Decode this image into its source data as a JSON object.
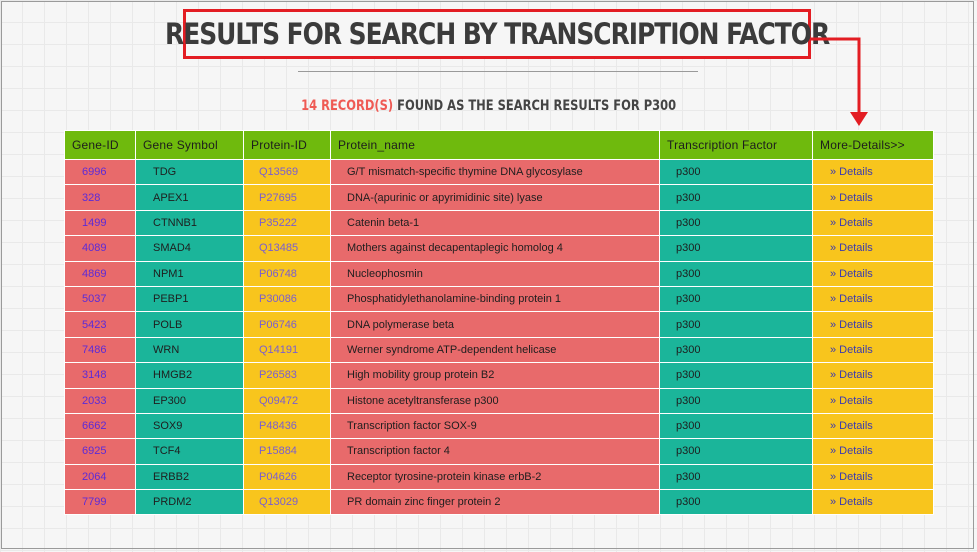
{
  "page": {
    "title": "RESULTS FOR SEARCH BY TRANSCRIPTION FACTOR",
    "subtitle_count": "14 RECORD(S)",
    "subtitle_rest": " FOUND AS THE SEARCH RESULTS FOR P300"
  },
  "colors": {
    "header_green": "#6fba0d",
    "coral": "#e86a6b",
    "teal": "#1bb59a",
    "yellow": "#f8c51d",
    "title_border_red": "#e31d23",
    "link_purple": "#5b2bd8"
  },
  "table": {
    "headers": [
      "Gene-ID",
      "Gene Symbol",
      "Protein-ID",
      "Protein_name",
      "Transcription Factor",
      "More-Details>>"
    ],
    "rows": [
      {
        "gene_id": "6996",
        "symbol": "TDG",
        "protein_id": "Q13569",
        "protein_name": "G/T mismatch-specific thymine DNA glycosylase",
        "tf": "p300",
        "details": "» Details"
      },
      {
        "gene_id": "328",
        "symbol": "APEX1",
        "protein_id": "P27695",
        "protein_name": "DNA-(apurinic or apyrimidinic site) lyase",
        "tf": "p300",
        "details": "» Details"
      },
      {
        "gene_id": "1499",
        "symbol": "CTNNB1",
        "protein_id": "P35222",
        "protein_name": "Catenin beta-1",
        "tf": "p300",
        "details": "» Details"
      },
      {
        "gene_id": "4089",
        "symbol": "SMAD4",
        "protein_id": "Q13485",
        "protein_name": "Mothers against decapentaplegic homolog 4",
        "tf": "p300",
        "details": "» Details"
      },
      {
        "gene_id": "4869",
        "symbol": "NPM1",
        "protein_id": "P06748",
        "protein_name": "Nucleophosmin",
        "tf": "p300",
        "details": "» Details"
      },
      {
        "gene_id": "5037",
        "symbol": "PEBP1",
        "protein_id": "P30086",
        "protein_name": "Phosphatidylethanolamine-binding protein 1",
        "tf": "p300",
        "details": "» Details"
      },
      {
        "gene_id": "5423",
        "symbol": "POLB",
        "protein_id": "P06746",
        "protein_name": "DNA polymerase beta",
        "tf": "p300",
        "details": "» Details"
      },
      {
        "gene_id": "7486",
        "symbol": "WRN",
        "protein_id": "Q14191",
        "protein_name": "Werner syndrome ATP-dependent helicase",
        "tf": "p300",
        "details": "» Details"
      },
      {
        "gene_id": "3148",
        "symbol": "HMGB2",
        "protein_id": "P26583",
        "protein_name": "High mobility group protein B2",
        "tf": "p300",
        "details": "» Details"
      },
      {
        "gene_id": "2033",
        "symbol": "EP300",
        "protein_id": "Q09472",
        "protein_name": "Histone acetyltransferase p300",
        "tf": "p300",
        "details": "» Details"
      },
      {
        "gene_id": "6662",
        "symbol": "SOX9",
        "protein_id": "P48436",
        "protein_name": "Transcription factor SOX-9",
        "tf": "p300",
        "details": "» Details"
      },
      {
        "gene_id": "6925",
        "symbol": "TCF4",
        "protein_id": "P15884",
        "protein_name": "Transcription factor 4",
        "tf": "p300",
        "details": "» Details"
      },
      {
        "gene_id": "2064",
        "symbol": "ERBB2",
        "protein_id": "P04626",
        "protein_name": "Receptor tyrosine-protein kinase erbB-2",
        "tf": "p300",
        "details": "» Details"
      },
      {
        "gene_id": "7799",
        "symbol": "PRDM2",
        "protein_id": "Q13029",
        "protein_name": "PR domain zinc finger protein 2",
        "tf": "p300",
        "details": "» Details"
      }
    ]
  }
}
